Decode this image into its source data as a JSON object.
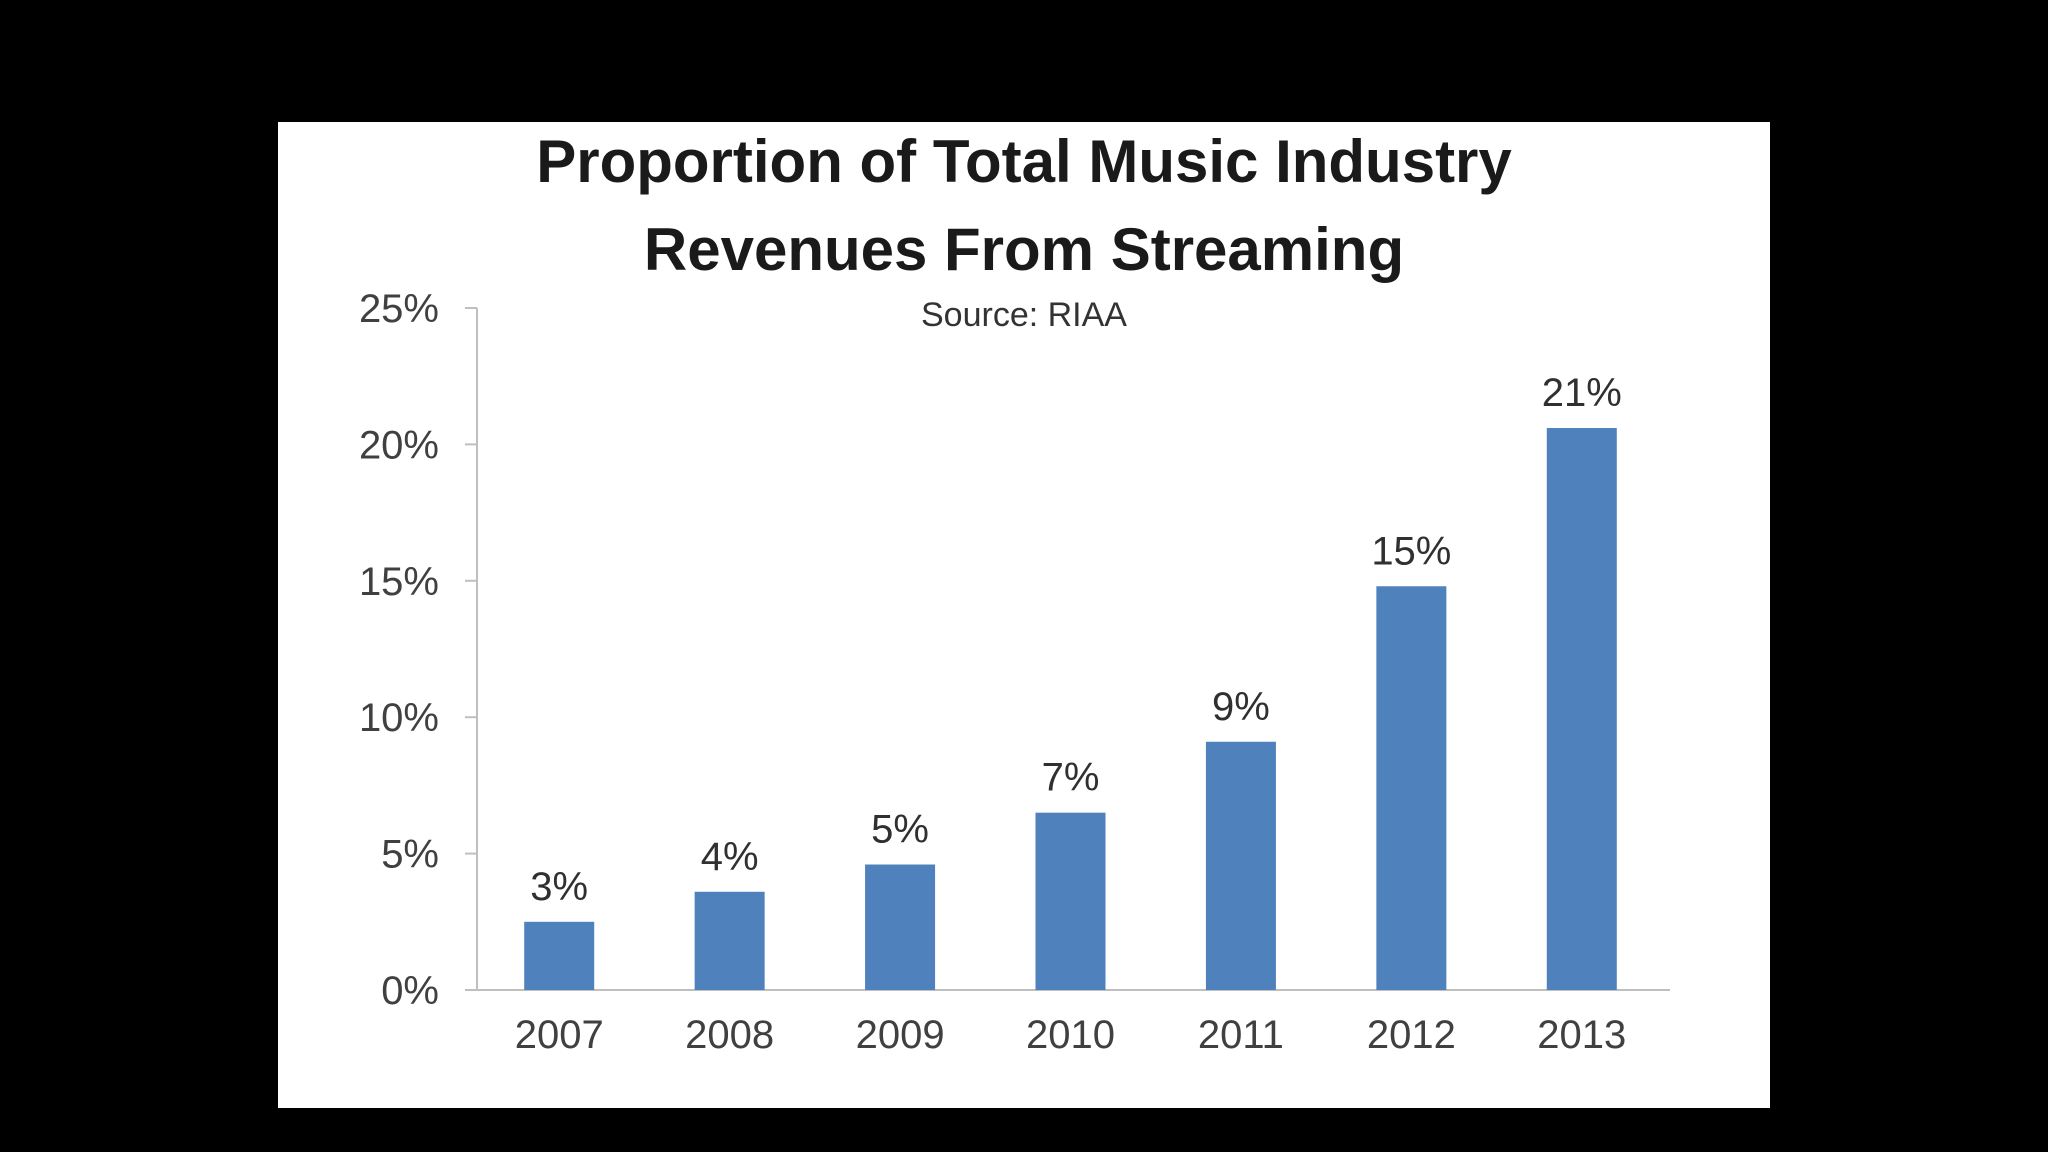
{
  "chart_data": {
    "type": "bar",
    "title_line1": "Proportion of Total Music Industry",
    "title_line2": "Revenues From Streaming",
    "subtitle": "Source: RIAA",
    "xlabel": "",
    "ylabel": "",
    "categories": [
      "2007",
      "2008",
      "2009",
      "2010",
      "2011",
      "2012",
      "2013"
    ],
    "values": [
      2.5,
      3.6,
      4.6,
      6.5,
      9.1,
      14.8,
      20.6
    ],
    "data_labels": [
      "3%",
      "4%",
      "5%",
      "7%",
      "9%",
      "15%",
      "21%"
    ],
    "ylim": [
      0,
      25
    ],
    "yticks": [
      0,
      5,
      10,
      15,
      20,
      25
    ],
    "ytick_labels": [
      "0%",
      "5%",
      "10%",
      "15%",
      "20%",
      "25%"
    ],
    "grid": false,
    "legend": "none",
    "bar_color": "#4f81bd",
    "axis_color": "#bfbfbf"
  }
}
